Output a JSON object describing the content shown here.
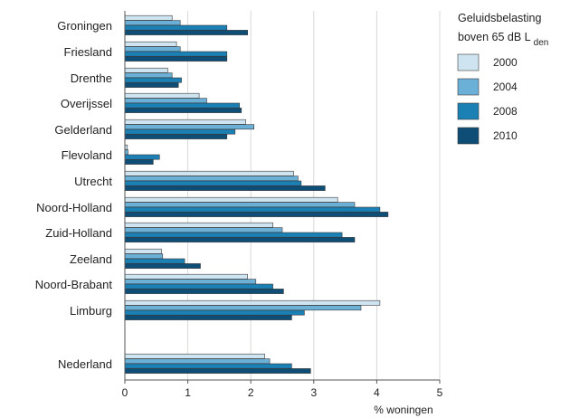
{
  "chart_data": {
    "type": "bar",
    "orientation": "horizontal",
    "categories": [
      "Groningen",
      "Friesland",
      "Drenthe",
      "Overijssel",
      "Gelderland",
      "Flevoland",
      "Utrecht",
      "Noord-Holland",
      "Zuid-Holland",
      "Zeeland",
      "Noord-Brabant",
      "Limburg",
      "Nederland"
    ],
    "series": [
      {
        "name": "2000",
        "color": "#cfe4f1",
        "values": [
          0.75,
          0.82,
          0.68,
          1.18,
          1.92,
          0.04,
          2.68,
          3.38,
          2.35,
          0.58,
          1.95,
          4.05,
          2.22
        ]
      },
      {
        "name": "2004",
        "color": "#6bb0d6",
        "values": [
          0.88,
          0.88,
          0.75,
          1.3,
          2.05,
          0.05,
          2.75,
          3.65,
          2.5,
          0.6,
          2.08,
          3.75,
          2.3
        ]
      },
      {
        "name": "2008",
        "color": "#1b80b4",
        "values": [
          1.62,
          1.62,
          0.9,
          1.82,
          1.75,
          0.55,
          2.8,
          4.05,
          3.45,
          0.95,
          2.35,
          2.85,
          2.65
        ]
      },
      {
        "name": "2010",
        "color": "#0e4d75",
        "values": [
          1.95,
          1.62,
          0.85,
          1.85,
          1.62,
          0.45,
          3.18,
          4.18,
          3.65,
          1.2,
          2.52,
          2.65,
          2.95
        ]
      }
    ],
    "xlabel": "% woningen",
    "xlim": [
      0,
      5
    ],
    "xticks": [
      "0",
      "1",
      "2",
      "3",
      "4",
      "5"
    ],
    "legend": {
      "title_line1": "Geluidsbelasting",
      "title_line2_prefix": "boven  65 dB L",
      "title_line2_sub": "den",
      "placement": "right"
    },
    "grid": true
  }
}
